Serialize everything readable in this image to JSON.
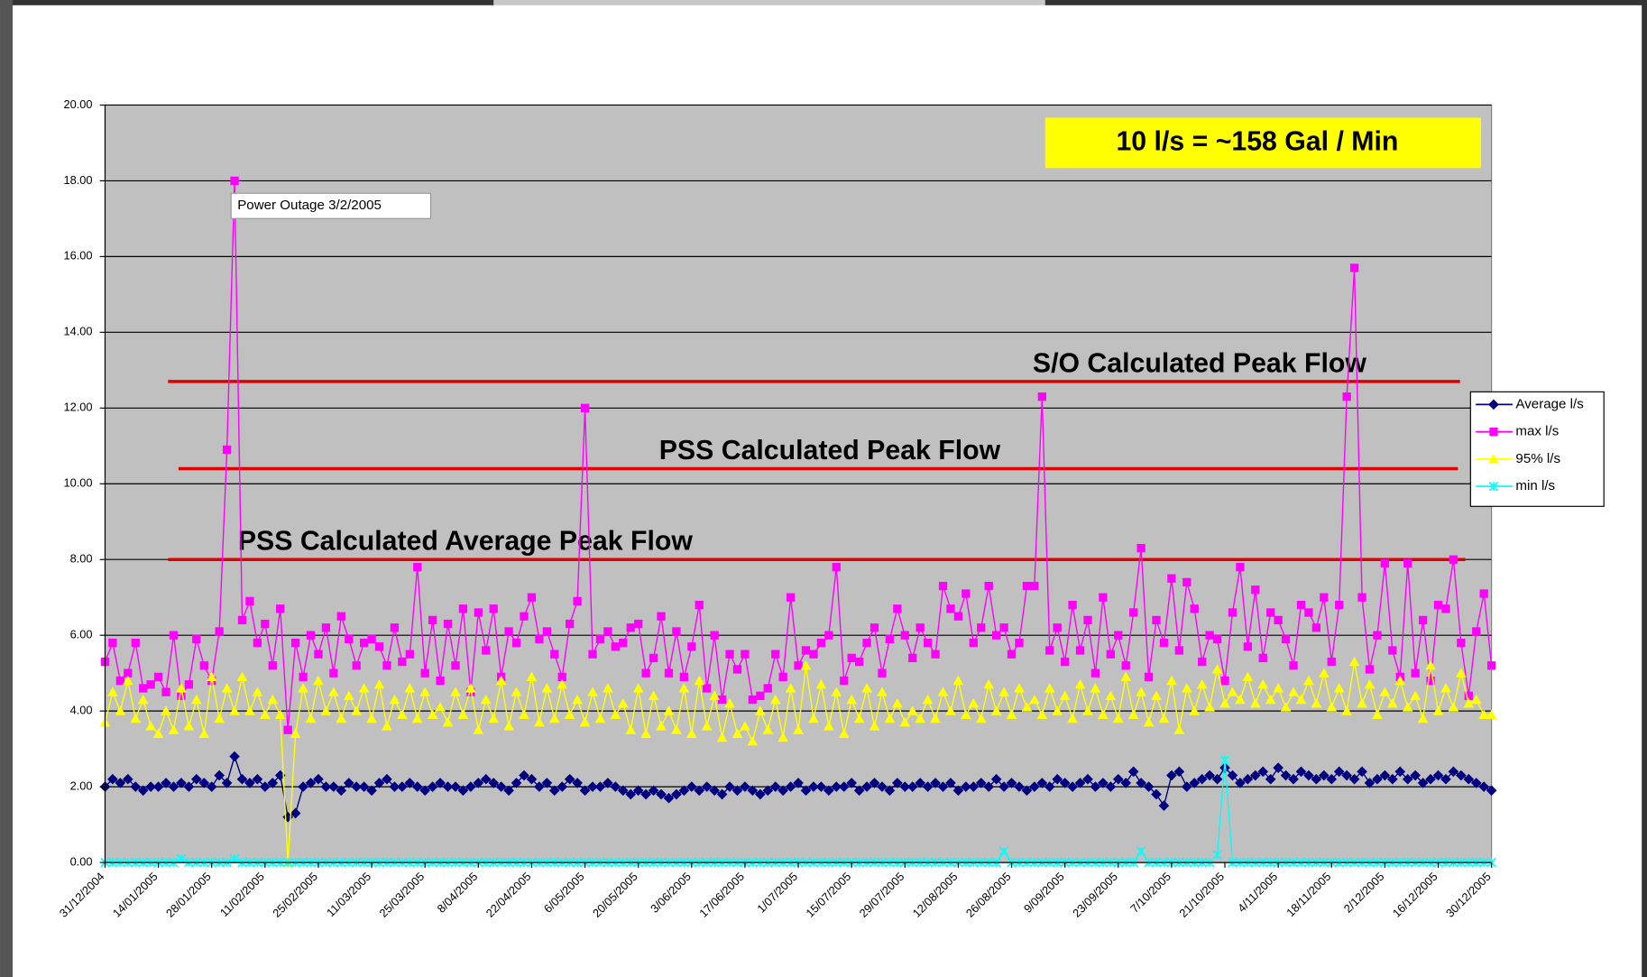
{
  "chart_data": {
    "type": "line",
    "categories": [
      "31/12/2004",
      null,
      null,
      null,
      null,
      null,
      null,
      "14/01/2005",
      null,
      null,
      null,
      null,
      null,
      null,
      "28/01/2005",
      null,
      null,
      null,
      null,
      null,
      null,
      "11/02/2005",
      null,
      null,
      null,
      null,
      null,
      null,
      "25/02/2005",
      null,
      null,
      null,
      null,
      null,
      null,
      "11/03/2005",
      null,
      null,
      null,
      null,
      null,
      null,
      "25/03/2005",
      null,
      null,
      null,
      null,
      null,
      null,
      "8/04/2005",
      null,
      null,
      null,
      null,
      null,
      null,
      "22/04/2005",
      null,
      null,
      null,
      null,
      null,
      null,
      "6/05/2005",
      null,
      null,
      null,
      null,
      null,
      null,
      "20/05/2005",
      null,
      null,
      null,
      null,
      null,
      null,
      "3/06/2005",
      null,
      null,
      null,
      null,
      null,
      null,
      "17/06/2005",
      null,
      null,
      null,
      null,
      null,
      null,
      "1/07/2005",
      null,
      null,
      null,
      null,
      null,
      null,
      "15/07/2005",
      null,
      null,
      null,
      null,
      null,
      null,
      "29/07/2005",
      null,
      null,
      null,
      null,
      null,
      null,
      "12/08/2005",
      null,
      null,
      null,
      null,
      null,
      null,
      "26/08/2005",
      null,
      null,
      null,
      null,
      null,
      null,
      "9/09/2005",
      null,
      null,
      null,
      null,
      null,
      null,
      "23/09/2005",
      null,
      null,
      null,
      null,
      null,
      null,
      "7/10/2005",
      null,
      null,
      null,
      null,
      null,
      null,
      "21/10/2005",
      null,
      null,
      null,
      null,
      null,
      null,
      "4/11/2005",
      null,
      null,
      null,
      null,
      null,
      null,
      "18/11/2005",
      null,
      null,
      null,
      null,
      null,
      null,
      "2/12/2005",
      null,
      null,
      null,
      null,
      null,
      null,
      "16/12/2005",
      null,
      null,
      null,
      null,
      null,
      null,
      "30/12/2005"
    ],
    "series": [
      {
        "name": "Average l/s",
        "color": "#000080",
        "marker": "diamond",
        "values": [
          2.0,
          2.2,
          2.1,
          2.2,
          2.0,
          1.9,
          2.0,
          2.0,
          2.1,
          2.0,
          2.1,
          2.0,
          2.2,
          2.1,
          2.0,
          2.3,
          2.1,
          2.8,
          2.2,
          2.1,
          2.2,
          2.0,
          2.1,
          2.3,
          1.2,
          1.3,
          2.0,
          2.1,
          2.2,
          2.0,
          2.0,
          1.9,
          2.1,
          2.0,
          2.0,
          1.9,
          2.1,
          2.2,
          2.0,
          2.0,
          2.1,
          2.0,
          1.9,
          2.0,
          2.1,
          2.0,
          2.0,
          1.9,
          2.0,
          2.1,
          2.2,
          2.1,
          2.0,
          1.9,
          2.1,
          2.3,
          2.2,
          2.0,
          2.1,
          1.9,
          2.0,
          2.2,
          2.1,
          1.9,
          2.0,
          2.0,
          2.1,
          2.0,
          1.9,
          1.8,
          1.9,
          1.8,
          1.9,
          1.8,
          1.7,
          1.8,
          1.9,
          2.0,
          1.9,
          2.0,
          1.9,
          1.8,
          2.0,
          1.9,
          2.0,
          1.9,
          1.8,
          1.9,
          2.0,
          1.9,
          2.0,
          2.1,
          1.9,
          2.0,
          2.0,
          1.9,
          2.0,
          2.0,
          2.1,
          1.9,
          2.0,
          2.1,
          2.0,
          1.9,
          2.1,
          2.0,
          2.0,
          2.1,
          2.0,
          2.1,
          2.0,
          2.1,
          1.9,
          2.0,
          2.0,
          2.1,
          2.0,
          2.2,
          2.0,
          2.1,
          2.0,
          1.9,
          2.0,
          2.1,
          2.0,
          2.2,
          2.1,
          2.0,
          2.1,
          2.2,
          2.0,
          2.1,
          2.0,
          2.2,
          2.1,
          2.4,
          2.1,
          2.0,
          1.8,
          1.5,
          2.3,
          2.4,
          2.0,
          2.1,
          2.2,
          2.3,
          2.2,
          2.5,
          2.3,
          2.1,
          2.2,
          2.3,
          2.4,
          2.2,
          2.5,
          2.3,
          2.2,
          2.4,
          2.3,
          2.2,
          2.3,
          2.2,
          2.4,
          2.3,
          2.2,
          2.4,
          2.1,
          2.2,
          2.3,
          2.2,
          2.4,
          2.2,
          2.3,
          2.1,
          2.2,
          2.3,
          2.2,
          2.4,
          2.3,
          2.2,
          2.1,
          2.0,
          1.9
        ]
      },
      {
        "name": "max l/s",
        "color": "#ff00ff",
        "marker": "square",
        "values": [
          5.3,
          5.8,
          4.8,
          5.0,
          5.8,
          4.6,
          4.7,
          4.9,
          4.5,
          6.0,
          4.4,
          4.7,
          5.9,
          5.2,
          4.8,
          6.1,
          10.9,
          18.0,
          6.4,
          6.9,
          5.8,
          6.3,
          5.2,
          6.7,
          3.5,
          5.8,
          4.9,
          6.0,
          5.5,
          6.2,
          5.0,
          6.5,
          5.9,
          5.2,
          5.8,
          5.9,
          5.7,
          5.2,
          6.2,
          5.3,
          5.5,
          7.8,
          5.0,
          6.4,
          4.8,
          6.3,
          5.2,
          6.7,
          4.5,
          6.6,
          5.6,
          6.7,
          4.9,
          6.1,
          5.8,
          6.5,
          7.0,
          5.9,
          6.1,
          5.5,
          4.9,
          6.3,
          6.9,
          12.0,
          5.5,
          5.9,
          6.1,
          5.7,
          5.8,
          6.2,
          6.3,
          5.0,
          5.4,
          6.5,
          5.0,
          6.1,
          4.9,
          5.7,
          6.8,
          4.6,
          6.0,
          4.3,
          5.5,
          5.1,
          5.5,
          4.3,
          4.4,
          4.6,
          5.5,
          4.9,
          7.0,
          5.2,
          5.6,
          5.5,
          5.8,
          6.0,
          7.8,
          4.8,
          5.4,
          5.3,
          5.8,
          6.2,
          5.0,
          5.9,
          6.7,
          6.0,
          5.4,
          6.2,
          5.8,
          5.5,
          7.3,
          6.7,
          6.5,
          7.1,
          5.8,
          6.2,
          7.3,
          6.0,
          6.2,
          5.5,
          5.8,
          7.3,
          7.3,
          12.3,
          5.6,
          6.2,
          5.3,
          6.8,
          5.6,
          6.4,
          5.0,
          7.0,
          5.5,
          6.0,
          5.2,
          6.6,
          8.3,
          4.9,
          6.4,
          5.8,
          7.5,
          5.6,
          7.4,
          6.7,
          5.3,
          6.0,
          5.9,
          4.8,
          6.6,
          7.8,
          5.7,
          7.2,
          5.4,
          6.6,
          6.4,
          5.9,
          5.2,
          6.8,
          6.6,
          6.2,
          7.0,
          5.3,
          6.8,
          12.3,
          15.7,
          7.0,
          5.1,
          6.0,
          7.9,
          5.6,
          4.9,
          7.9,
          5.0,
          6.4,
          4.8,
          6.8,
          6.7,
          8.0,
          5.8,
          4.4,
          6.1,
          7.1,
          5.2
        ]
      },
      {
        "name": "95% l/s",
        "color": "#ffff00",
        "marker": "triangle",
        "values": [
          3.7,
          4.5,
          4.0,
          4.8,
          3.8,
          4.3,
          3.6,
          3.4,
          4.0,
          3.5,
          4.6,
          3.6,
          4.3,
          3.4,
          4.9,
          3.8,
          4.6,
          4.0,
          4.9,
          4.0,
          4.5,
          3.9,
          4.3,
          3.9,
          0,
          3.4,
          4.6,
          3.8,
          4.8,
          4.0,
          4.5,
          3.8,
          4.4,
          4.0,
          4.6,
          3.8,
          4.7,
          3.6,
          4.3,
          3.9,
          4.6,
          3.8,
          4.5,
          3.9,
          4.1,
          3.7,
          4.5,
          3.9,
          4.6,
          3.5,
          4.3,
          3.8,
          4.8,
          3.6,
          4.5,
          3.9,
          4.9,
          3.7,
          4.6,
          3.8,
          4.7,
          3.9,
          4.3,
          3.7,
          4.5,
          3.8,
          4.6,
          3.9,
          4.2,
          3.5,
          4.6,
          3.4,
          4.4,
          3.6,
          4.0,
          3.5,
          4.6,
          3.4,
          4.8,
          3.6,
          4.4,
          3.3,
          4.2,
          3.4,
          3.6,
          3.2,
          4.0,
          3.5,
          4.3,
          3.3,
          4.6,
          3.5,
          5.2,
          3.8,
          4.7,
          3.6,
          4.5,
          3.4,
          4.3,
          3.8,
          4.6,
          3.6,
          4.5,
          3.8,
          4.2,
          3.7,
          4.0,
          3.8,
          4.3,
          3.8,
          4.5,
          4.0,
          4.8,
          3.9,
          4.2,
          3.8,
          4.7,
          4.0,
          4.5,
          3.9,
          4.6,
          4.1,
          4.3,
          3.9,
          4.6,
          4.0,
          4.4,
          3.8,
          4.7,
          4.0,
          4.6,
          3.9,
          4.4,
          3.8,
          4.9,
          3.9,
          4.5,
          3.7,
          4.4,
          3.8,
          4.8,
          3.5,
          4.6,
          4.0,
          4.7,
          4.1,
          5.1,
          4.2,
          4.5,
          4.3,
          4.9,
          4.2,
          4.7,
          4.3,
          4.6,
          4.1,
          4.5,
          4.3,
          4.8,
          4.2,
          5.0,
          4.1,
          4.6,
          4.0,
          5.3,
          4.2,
          4.7,
          3.9,
          4.5,
          4.2,
          4.8,
          4.1,
          4.4,
          3.8,
          5.2,
          4.0,
          4.6,
          4.1,
          5.0,
          4.2,
          4.3,
          3.9,
          3.9
        ]
      },
      {
        "name": "min l/s",
        "color": "#00ffff",
        "marker": "star",
        "values": [
          0,
          0,
          0,
          0,
          0,
          0,
          0,
          0,
          0,
          0,
          0.1,
          0,
          0,
          0,
          0,
          0,
          0,
          0.1,
          0,
          0,
          0,
          0,
          0,
          0,
          0,
          0,
          0,
          0,
          0,
          0,
          0,
          0,
          0,
          0,
          0,
          0,
          0,
          0,
          0,
          0,
          0,
          0,
          0,
          0,
          0,
          0,
          0,
          0,
          0,
          0,
          0,
          0,
          0,
          0,
          0,
          0,
          0,
          0,
          0,
          0,
          0,
          0,
          0,
          0,
          0,
          0,
          0,
          0,
          0,
          0,
          0,
          0,
          0,
          0,
          0,
          0,
          0,
          0,
          0,
          0,
          0,
          0,
          0,
          0,
          0,
          0,
          0,
          0,
          0,
          0,
          0,
          0,
          0,
          0,
          0,
          0,
          0,
          0,
          0,
          0,
          0,
          0,
          0,
          0,
          0,
          0,
          0,
          0,
          0,
          0,
          0,
          0,
          0,
          0,
          0,
          0,
          0,
          0,
          0.3,
          0,
          0,
          0,
          0,
          0,
          0,
          0,
          0,
          0,
          0,
          0,
          0,
          0,
          0,
          0,
          0,
          0,
          0.3,
          0,
          0,
          0,
          0,
          0,
          0,
          0,
          0,
          0,
          0.2,
          2.7,
          0,
          0,
          0,
          0,
          0,
          0,
          0,
          0,
          0,
          0,
          0,
          0,
          0,
          0,
          0,
          0,
          0,
          0,
          0,
          0,
          0,
          0,
          0,
          0,
          0,
          0,
          0,
          0,
          0,
          0,
          0,
          0,
          0,
          0,
          0
        ]
      }
    ],
    "ylim": [
      0,
      20
    ],
    "yticks": [
      {
        "value": 0,
        "label": "0.00"
      },
      {
        "value": 2,
        "label": "2.00"
      },
      {
        "value": 4,
        "label": "4.00"
      },
      {
        "value": 6,
        "label": "6.00"
      },
      {
        "value": 8,
        "label": "8.00"
      },
      {
        "value": 10,
        "label": "10.00"
      },
      {
        "value": 12,
        "label": "12.00"
      },
      {
        "value": 14,
        "label": "14.00"
      },
      {
        "value": 16,
        "label": "16.00"
      },
      {
        "value": 18,
        "label": "18.00"
      },
      {
        "value": 20,
        "label": "20.00"
      }
    ],
    "grid": true,
    "legend": "right",
    "reference_lines": [
      {
        "label": "S/O Calculated Peak Flow",
        "value": 12.7,
        "color": "#e00000"
      },
      {
        "label": "PSS Calculated Peak Flow",
        "value": 10.4,
        "color": "#e00000"
      },
      {
        "label": "PSS Calculated Average Peak Flow",
        "value": 8.0,
        "color": "#e00000"
      }
    ],
    "annotations": [
      "Power Outage 3/2/2005",
      "10 l/s = ~158 Gal / Min"
    ]
  }
}
